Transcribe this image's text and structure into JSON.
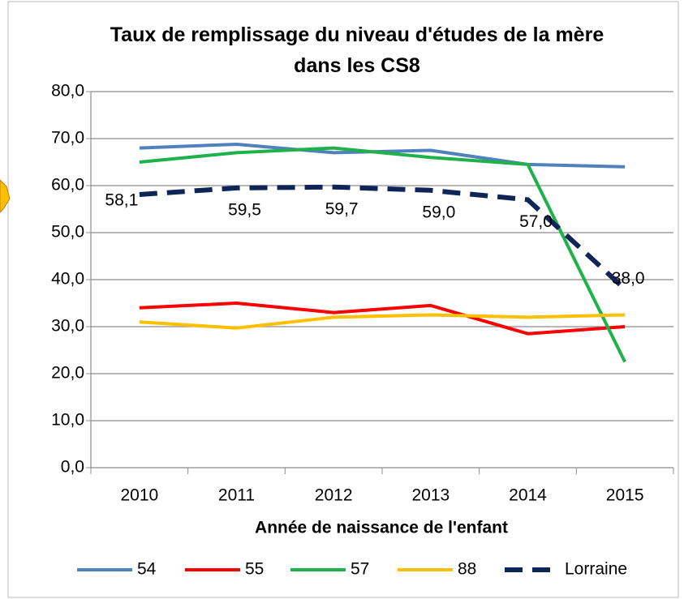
{
  "chart_data": {
    "type": "line",
    "title": "Taux de remplissage du niveau d'études de la mère dans les CS8",
    "x_label": "Année de naissance de l'enfant",
    "categories": [
      "2010",
      "2011",
      "2012",
      "2013",
      "2014",
      "2015"
    ],
    "series": [
      {
        "name": "54",
        "color": "#4f81bd",
        "values": [
          68.0,
          68.8,
          67.0,
          67.5,
          64.5,
          64.0
        ]
      },
      {
        "name": "55",
        "color": "#ff0000",
        "values": [
          34.0,
          35.0,
          33.0,
          34.5,
          28.5,
          30.0
        ]
      },
      {
        "name": "57",
        "color": "#1fb14a",
        "values": [
          65.0,
          67.0,
          68.0,
          66.0,
          64.5,
          22.5
        ]
      },
      {
        "name": "88",
        "color": "#ffc000",
        "values": [
          31.0,
          29.7,
          32.0,
          32.5,
          32.0,
          32.5
        ]
      },
      {
        "name": "Lorraine",
        "color": "#0f2557",
        "dashed": true,
        "values": [
          58.1,
          59.5,
          59.7,
          59.0,
          57.0,
          38.0
        ],
        "value_labels": [
          "58,1",
          "59,5",
          "59,7",
          "59,0",
          "57,0",
          "38,0"
        ]
      }
    ],
    "ylim": [
      0,
      80
    ],
    "yticks": [
      {
        "value": 0,
        "label": "0,0"
      },
      {
        "value": 10,
        "label": "10,0"
      },
      {
        "value": 20,
        "label": "20,0"
      },
      {
        "value": 30,
        "label": "30,0"
      },
      {
        "value": 40,
        "label": "40,0"
      },
      {
        "value": 50,
        "label": "50,0"
      },
      {
        "value": 60,
        "label": "60,0"
      },
      {
        "value": 70,
        "label": "70,0"
      },
      {
        "value": 80,
        "label": "80,0"
      }
    ],
    "grid": true,
    "legend": "bottom"
  }
}
